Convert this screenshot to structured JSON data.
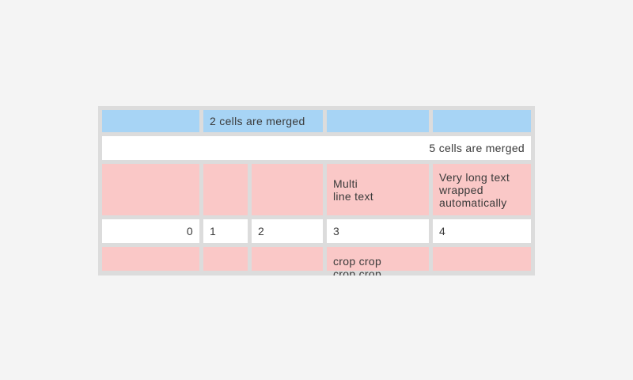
{
  "screen": {
    "background": "#f4f4f4"
  },
  "table": {
    "background": "#dcdcdc",
    "text_color": "#3a3a3a",
    "cell_colors": {
      "blue": "#a7d4f5",
      "pink": "#fac8c7",
      "white": "#ffffff"
    },
    "rows": [
      {
        "style": "blue",
        "cells": [
          {
            "text": ""
          },
          {
            "text": "2 cells are merged",
            "span": 2
          },
          {
            "text": ""
          },
          {
            "text": ""
          }
        ]
      },
      {
        "style": "white",
        "cells": [
          {
            "text": "5 cells are merged",
            "span": 5,
            "align": "right"
          }
        ]
      },
      {
        "style": "pink",
        "cells": [
          {
            "text": ""
          },
          {
            "text": ""
          },
          {
            "text": ""
          },
          {
            "text": "Multi\nline text"
          },
          {
            "text": "Very long text wrapped automatically"
          }
        ]
      },
      {
        "style": "white",
        "cells": [
          {
            "text": "0",
            "align": "right"
          },
          {
            "text": "1"
          },
          {
            "text": "2"
          },
          {
            "text": "3"
          },
          {
            "text": "4"
          }
        ]
      },
      {
        "style": "pink",
        "cells": [
          {
            "text": ""
          },
          {
            "text": ""
          },
          {
            "text": ""
          },
          {
            "text": "crop crop crop crop",
            "cropped": true
          },
          {
            "text": ""
          }
        ]
      }
    ]
  }
}
